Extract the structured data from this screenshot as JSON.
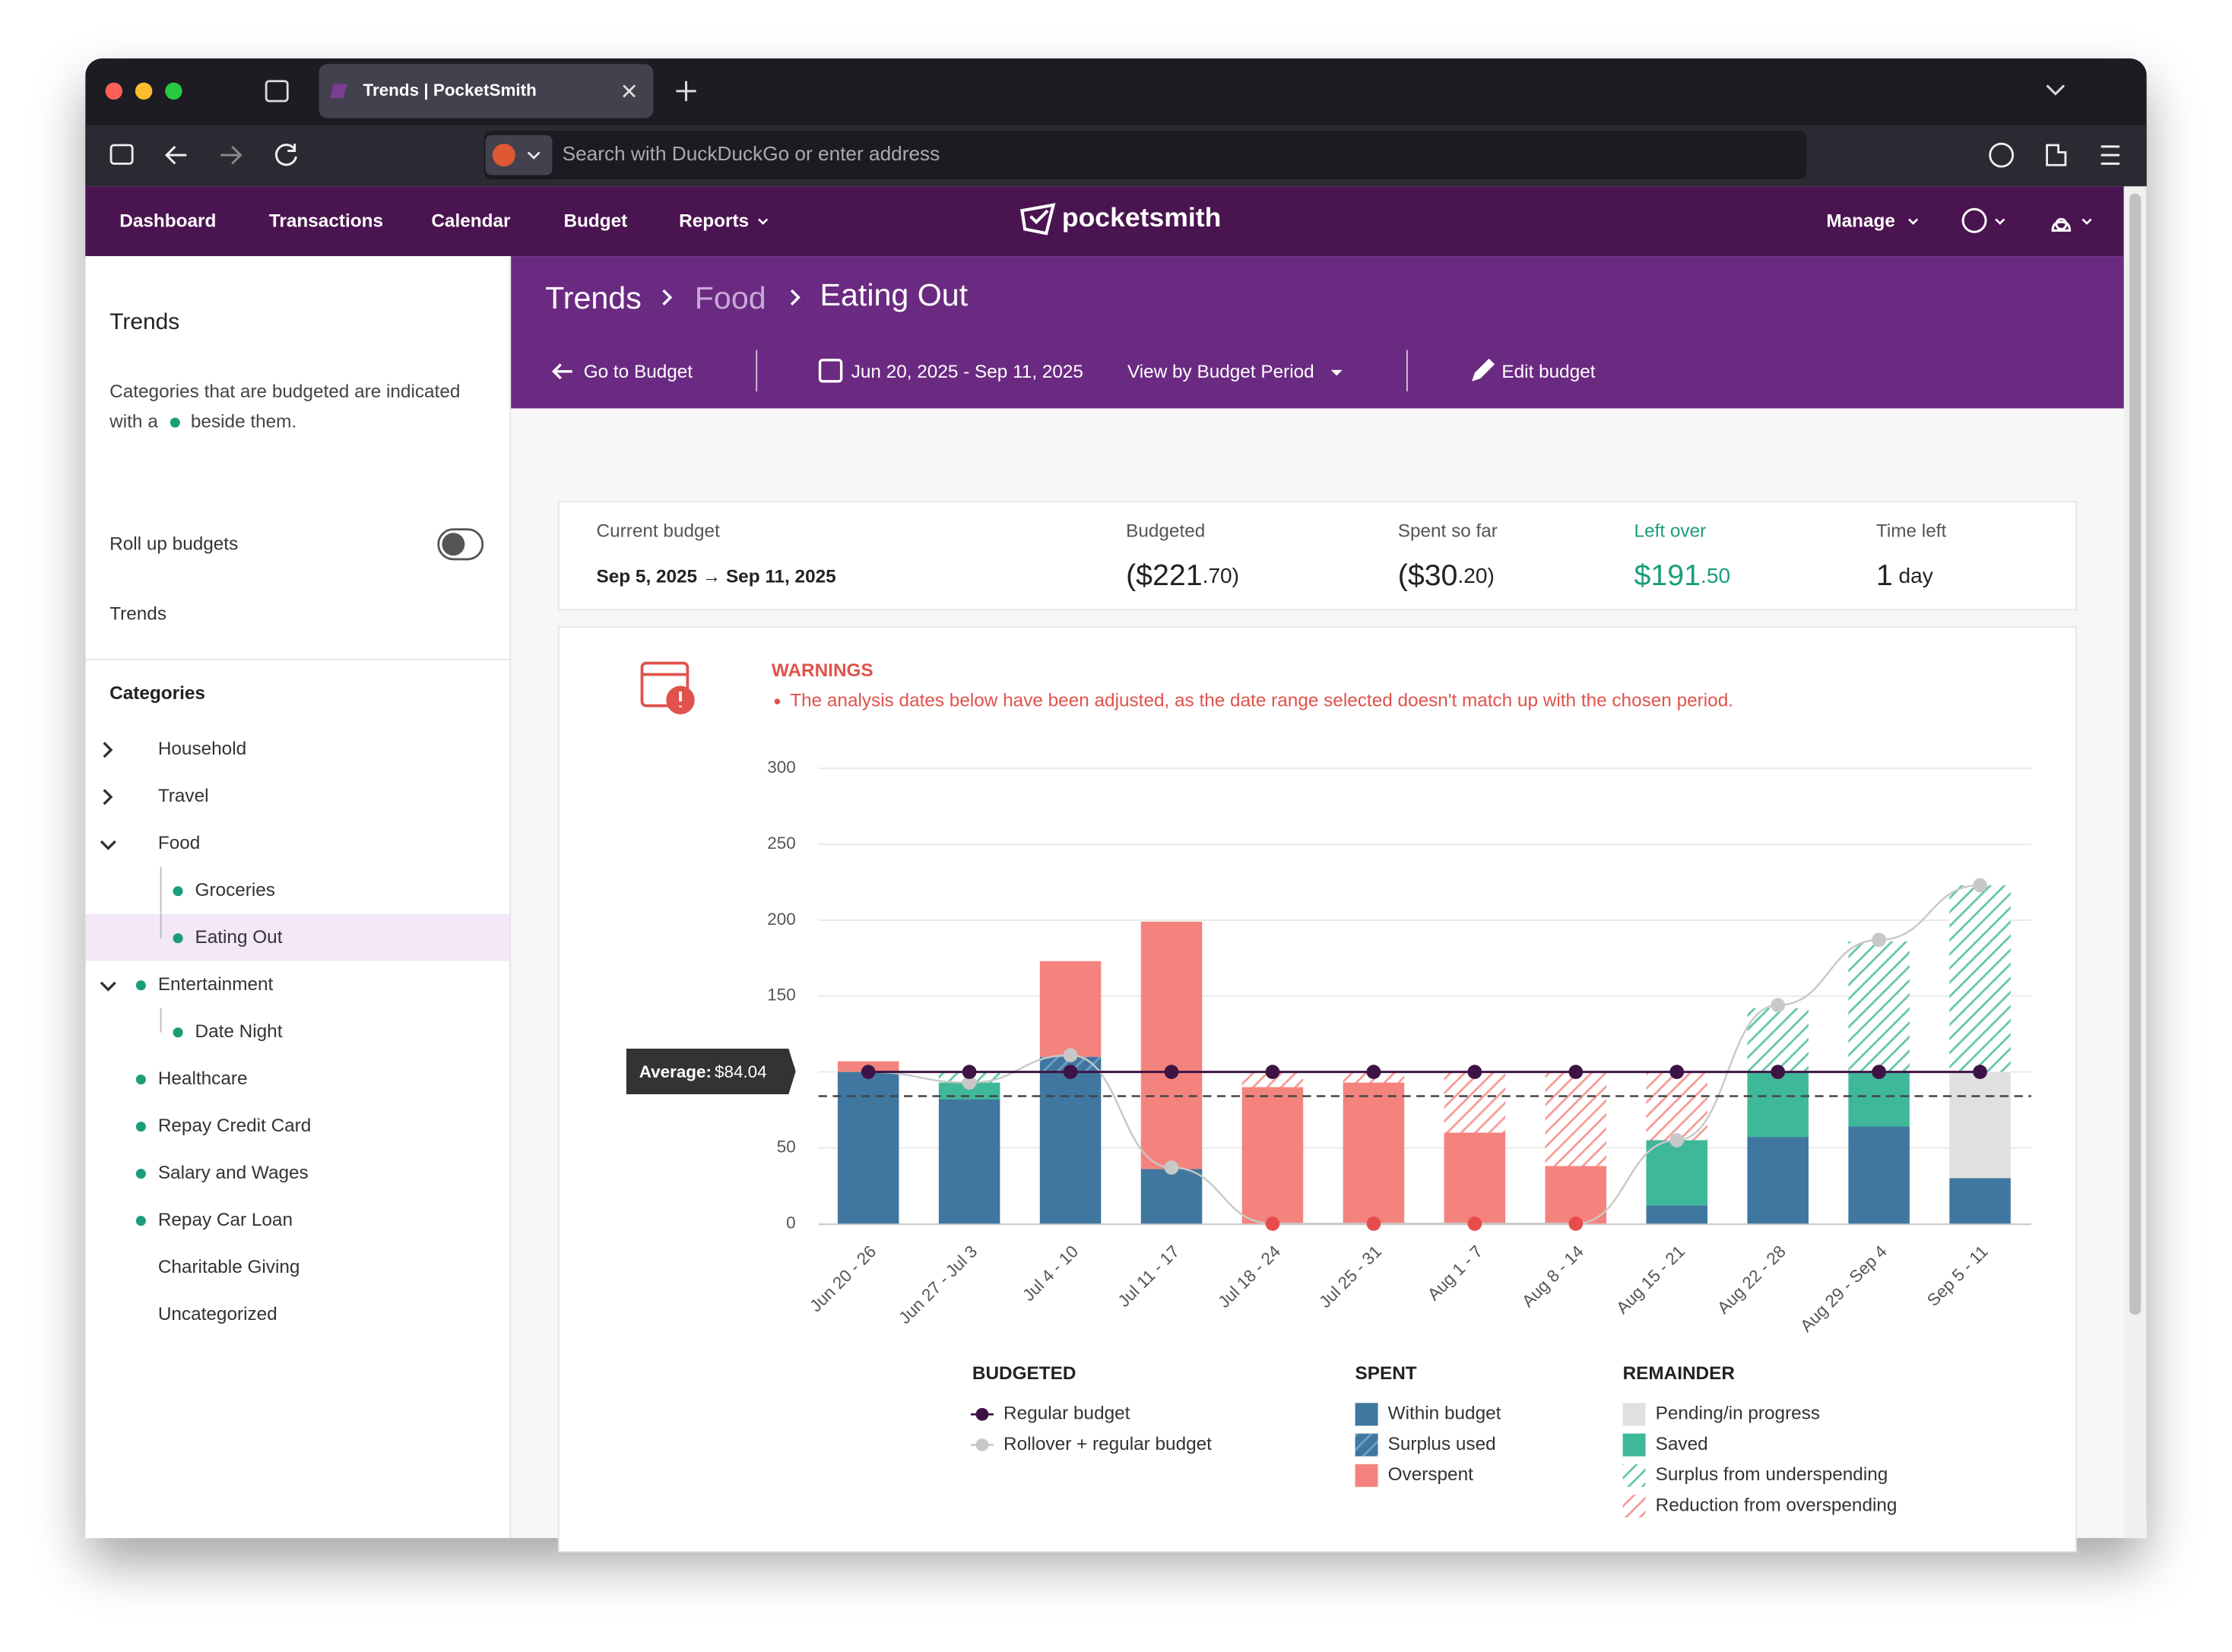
{
  "browser": {
    "tab_title": "Trends | PocketSmith",
    "address_placeholder": "Search with DuckDuckGo or enter address"
  },
  "nav": {
    "items": [
      "Dashboard",
      "Transactions",
      "Calendar",
      "Budget",
      "Reports"
    ],
    "brand": "pocketsmith",
    "manage": "Manage"
  },
  "sidebar": {
    "title": "Trends",
    "note": [
      "Categories that are budgeted are indicated",
      "with a",
      "beside them."
    ],
    "rollup": "Roll up budgets",
    "trends": "Trends",
    "categories_title": "Categories",
    "categories": [
      {
        "name": "Household",
        "expand": "closed",
        "level": 0,
        "budgeted": false
      },
      {
        "name": "Travel",
        "expand": "closed",
        "level": 0,
        "budgeted": false
      },
      {
        "name": "Food",
        "expand": "open",
        "level": 0,
        "budgeted": false
      },
      {
        "name": "Groceries",
        "expand": "none",
        "level": 1,
        "budgeted": true
      },
      {
        "name": "Eating Out",
        "expand": "none",
        "level": 1,
        "budgeted": true,
        "selected": true
      },
      {
        "name": "Entertainment",
        "expand": "open",
        "level": 0,
        "budgeted": true
      },
      {
        "name": "Date Night",
        "expand": "none",
        "level": 1,
        "budgeted": true
      },
      {
        "name": "Healthcare",
        "expand": "none",
        "level": 0,
        "budgeted": true
      },
      {
        "name": "Repay Credit Card",
        "expand": "none",
        "level": 0,
        "budgeted": true
      },
      {
        "name": "Salary and Wages",
        "expand": "none",
        "level": 0,
        "budgeted": true
      },
      {
        "name": "Repay Car Loan",
        "expand": "none",
        "level": 0,
        "budgeted": true
      },
      {
        "name": "Charitable Giving",
        "expand": "none",
        "level": 0,
        "budgeted": false
      },
      {
        "name": "Uncategorized",
        "expand": "none",
        "level": 0,
        "budgeted": false
      }
    ]
  },
  "header": {
    "breadcrumb": [
      "Trends",
      "Food",
      "Eating Out"
    ],
    "go_to_budget": "Go to Budget",
    "date_range": "Jun 20, 2025 - Sep 11, 2025",
    "view_by": "View by Budget Period",
    "edit_budget": "Edit budget"
  },
  "summary": {
    "current_label": "Current budget",
    "current_value": "Sep 5, 2025 → Sep 11, 2025",
    "items": [
      {
        "label": "Budgeted",
        "value": "($221.70)"
      },
      {
        "label": "Spent so far",
        "value": "($30.20)"
      },
      {
        "label": "Left over",
        "value": "$191.50"
      },
      {
        "label": "Time left",
        "value": "1 day"
      }
    ]
  },
  "warnings": {
    "title": "WARNINGS",
    "message": "The analysis dates below have been adjusted, as the date range selected doesn't match up with the chosen period."
  },
  "chart_data": {
    "type": "stacked_bar",
    "categories": [
      "Jun 20 - 26",
      "Jun 27 - Jul 3",
      "Jul 4 - 10",
      "Jul 11 - 17",
      "Jul 18 - 24",
      "Jul 25 - 31",
      "Aug 1 - 7",
      "Aug 8 - 14",
      "Aug 15 - 21",
      "Aug 22 - 28",
      "Aug 29 - Sep 4",
      "Sep 5 - 11"
    ],
    "ylim": [
      0,
      300
    ],
    "yticks": [
      0,
      50,
      100,
      150,
      200,
      250,
      300
    ],
    "grid": true,
    "legend_titles": [
      "BUDGETED",
      "SPENT",
      "REMAINDER"
    ],
    "series": [
      {
        "name": "Within budget",
        "color": "#3f77a0",
        "hatched": false,
        "values": [
          100,
          82,
          100,
          36,
          0,
          0,
          0,
          0,
          12,
          57,
          64,
          30
        ]
      },
      {
        "name": "Surplus used",
        "color": "#3f77a0",
        "hatched": true,
        "values": [
          0,
          0,
          10,
          0,
          0,
          0,
          0,
          0,
          0,
          0,
          0,
          0
        ]
      },
      {
        "name": "Overspent",
        "color": "#f4837d",
        "hatched": false,
        "values": [
          7,
          0,
          63,
          163,
          90,
          93,
          60,
          38,
          0,
          0,
          0,
          0
        ]
      },
      {
        "name": "Pending/in progress",
        "color": "#e0e0e0",
        "hatched": false,
        "values": [
          0,
          0,
          0,
          0,
          0,
          0,
          0,
          0,
          0,
          0,
          0,
          70
        ]
      },
      {
        "name": "Saved",
        "color": "#3fb89a",
        "hatched": false,
        "values": [
          0,
          11,
          0,
          0,
          0,
          0,
          0,
          0,
          43,
          43,
          36,
          0
        ]
      },
      {
        "name": "Surplus from underspending",
        "color": "#3fb89a",
        "hatched": true,
        "values": [
          0,
          7,
          0,
          0,
          0,
          0,
          0,
          0,
          0,
          42,
          86,
          123
        ]
      },
      {
        "name": "Reduction from overspending",
        "color": "#f4837d",
        "hatched": true,
        "values": [
          0,
          0,
          0,
          0,
          10,
          7,
          40,
          62,
          45,
          0,
          0,
          0
        ]
      }
    ],
    "lines": [
      {
        "name": "Regular budget",
        "color": "#3d1345",
        "values": [
          100,
          100,
          100,
          100,
          100,
          100,
          100,
          100,
          100,
          100,
          100,
          100
        ]
      },
      {
        "name": "Rollover + regular budget",
        "color": "#c8c8c8",
        "values": [
          100,
          93,
          111,
          37,
          0,
          0,
          0,
          0,
          55,
          144,
          187,
          223
        ]
      }
    ],
    "average": {
      "label": "Average:",
      "value": 84.04,
      "value_label": "$84.04"
    }
  }
}
